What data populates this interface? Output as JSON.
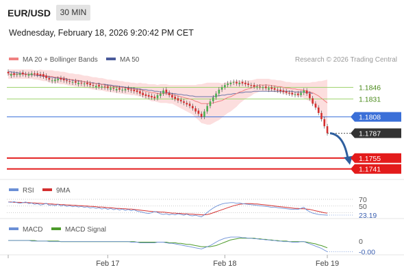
{
  "header": {
    "pair": "EUR/USD",
    "timeframe": "30 MIN",
    "datetime": "Wednesday, February 18, 2026 9:20:42 PM CET"
  },
  "legend": {
    "ma20": "MA 20 + Bollinger Bands",
    "ma50": "MA 50",
    "credit": "Research © 2026 Trading Central",
    "rsi": "RSI",
    "rsi_ma": "9MA",
    "macd": "MACD",
    "macd_signal": "MACD Signal"
  },
  "colors": {
    "candle_up": "#4caf50",
    "candle_down": "#d32f2f",
    "bollinger_fill": "#fbd3d3",
    "ma20": "#f08080",
    "ma50": "#4a5a9a",
    "resistance": "#9fd46f",
    "pivot": "#3a6fd8",
    "support": "#e31b1b",
    "last_price": "#333333",
    "rsi": "#6b8fd6",
    "rsi_ma": "#d32f2f",
    "macd": "#6b8fd6",
    "macd_signal": "#4c9a2a",
    "arrow": "#2f5f9e"
  },
  "chart_data": [
    {
      "type": "candlestick",
      "panel": "price",
      "ylim": [
        1.1731,
        1.1872
      ],
      "x_tick_labels": [
        "Feb 17",
        "Feb 18",
        "Feb 19"
      ],
      "x_tick_index": [
        34,
        74,
        109
      ],
      "n_bars": 110,
      "close": [
        1.1864,
        1.1863,
        1.1862,
        1.1863,
        1.1864,
        1.1863,
        1.1862,
        1.1863,
        1.1864,
        1.1863,
        1.1862,
        1.1861,
        1.186,
        1.1858,
        1.1856,
        1.1855,
        1.1856,
        1.1857,
        1.1856,
        1.1855,
        1.1854,
        1.1853,
        1.1853,
        1.1852,
        1.1852,
        1.1851,
        1.1851,
        1.185,
        1.1849,
        1.1848,
        1.1848,
        1.1847,
        1.1847,
        1.1846,
        1.1845,
        1.1845,
        1.1844,
        1.1844,
        1.1843,
        1.1843,
        1.1844,
        1.1843,
        1.1842,
        1.1841,
        1.184,
        1.1838,
        1.1836,
        1.1835,
        1.1834,
        1.1833,
        1.1832,
        1.1836,
        1.1838,
        1.1842,
        1.1839,
        1.1836,
        1.1833,
        1.1831,
        1.1829,
        1.1828,
        1.1826,
        1.1824,
        1.1822,
        1.1819,
        1.1815,
        1.1812,
        1.1808,
        1.1815,
        1.1822,
        1.1828,
        1.1833,
        1.1838,
        1.1843,
        1.1846,
        1.1849,
        1.1851,
        1.1852,
        1.1853,
        1.1851,
        1.1852,
        1.1851,
        1.185,
        1.1849,
        1.1848,
        1.1847,
        1.1847,
        1.1846,
        1.1846,
        1.1845,
        1.1845,
        1.1844,
        1.1843,
        1.1842,
        1.1841,
        1.184,
        1.1839,
        1.1838,
        1.1837,
        1.1837,
        1.1836,
        1.1839,
        1.1842,
        1.1838,
        1.1832,
        1.1825,
        1.182,
        1.1813,
        1.1805,
        1.1796,
        1.1787
      ],
      "open_offset": [
        0.0002,
        -0.0002,
        0.0002,
        -0.0001,
        -0.0002,
        0.0002,
        0.0001,
        -0.0002,
        -0.0002,
        0.0001,
        0.0002,
        0.0002,
        0.0003,
        0.0003,
        0.0002,
        -0.0001,
        -0.0002,
        -0.0002,
        0.0002,
        0.0002,
        0.0001,
        0.0001,
        -0.0001,
        0.0002,
        -0.0002,
        0.0001,
        -0.0001,
        0.0002,
        0.0002,
        0.0001,
        -0.0002,
        0.0002,
        -0.0001,
        0.0001,
        0.0002,
        -0.0002,
        0.0001,
        -0.0002,
        0.0002,
        -0.0001,
        -0.0002,
        0.0002,
        0.0001,
        0.0002,
        0.0002,
        0.0003,
        0.0003,
        0.0002,
        0.0002,
        0.0002,
        0.0002,
        -0.0004,
        -0.0003,
        -0.0004,
        0.0004,
        0.0003,
        0.0003,
        0.0003,
        0.0003,
        0.0002,
        0.0002,
        0.0002,
        0.0003,
        0.0003,
        0.0004,
        0.0004,
        0.0004,
        -0.0007,
        -0.0007,
        -0.0006,
        -0.0005,
        -0.0005,
        -0.0005,
        -0.0003,
        -0.0003,
        -0.0002,
        -0.0002,
        -0.0001,
        0.0002,
        -0.0002,
        0.0002,
        0.0002,
        0.0002,
        0.0001,
        0.0002,
        -0.0001,
        0.0001,
        -0.0001,
        0.0002,
        -0.0002,
        0.0002,
        0.0002,
        0.0001,
        0.0002,
        0.0002,
        0.0002,
        0.0001,
        0.0002,
        -0.0001,
        0.0002,
        -0.0003,
        -0.0003,
        0.0004,
        0.0006,
        0.0007,
        0.0005,
        0.0007,
        0.0008,
        0.0009,
        0.0009
      ],
      "bars_high_offset": 0.0003,
      "bars_low_offset": 0.0003,
      "levels": [
        {
          "label": "1.1846",
          "value": 1.1846,
          "role": "resistance"
        },
        {
          "label": "1.1831",
          "value": 1.1831,
          "role": "resistance"
        },
        {
          "label": "1.1808",
          "value": 1.1808,
          "role": "pivot"
        },
        {
          "label": "1.1787",
          "value": 1.1787,
          "role": "last"
        },
        {
          "label": "1.1755",
          "value": 1.1755,
          "role": "support"
        },
        {
          "label": "1.1741",
          "value": 1.1741,
          "role": "support"
        }
      ],
      "ma50": [
        1.1866,
        1.1866,
        1.1865,
        1.1865,
        1.1864,
        1.1864,
        1.1863,
        1.1863,
        1.1862,
        1.1862,
        1.1861,
        1.1861,
        1.186,
        1.186,
        1.1859,
        1.1859,
        1.1858,
        1.1858,
        1.1857,
        1.1857,
        1.1856,
        1.1856,
        1.1855,
        1.1855,
        1.1854,
        1.1854,
        1.1853,
        1.1853,
        1.1852,
        1.1852,
        1.1851,
        1.1851,
        1.185,
        1.185,
        1.1849,
        1.1849,
        1.1848,
        1.1848,
        1.1847,
        1.1847,
        1.1846,
        1.1846,
        1.1845,
        1.1845,
        1.1844,
        1.1844,
        1.1843,
        1.1843,
        1.1842,
        1.1842,
        1.1841,
        1.1841,
        1.184,
        1.184,
        1.1839,
        1.1839,
        1.1838,
        1.1838,
        1.1837,
        1.1837,
        1.1836,
        1.1836,
        1.1835,
        1.1835,
        1.1834,
        1.1834,
        1.1834,
        1.1834,
        1.1834,
        1.1834,
        1.1834,
        1.1835,
        1.1835,
        1.1836,
        1.1836,
        1.1837,
        1.1837,
        1.1838,
        1.1838,
        1.1839,
        1.1839,
        1.184,
        1.184,
        1.184,
        1.1841,
        1.1841,
        1.1841,
        1.1841,
        1.1841,
        1.1841,
        1.1841,
        1.1841,
        1.1841,
        1.1841,
        1.1841,
        1.1841,
        1.1841,
        1.1841,
        1.184,
        1.184,
        1.184,
        1.184,
        1.1839,
        1.1839,
        1.1838
      ],
      "ma20": [
        1.1863,
        1.1863,
        1.1863,
        1.1863,
        1.1863,
        1.1863,
        1.1863,
        1.1863,
        1.1863,
        1.1862,
        1.1862,
        1.1862,
        1.1861,
        1.1861,
        1.186,
        1.186,
        1.1859,
        1.1859,
        1.1858,
        1.1858,
        1.1857,
        1.1856,
        1.1856,
        1.1855,
        1.1855,
        1.1854,
        1.1853,
        1.1853,
        1.1852,
        1.1851,
        1.1851,
        1.185,
        1.185,
        1.1849,
        1.1848,
        1.1848,
        1.1847,
        1.1847,
        1.1846,
        1.1846,
        1.1845,
        1.1845,
        1.1844,
        1.1844,
        1.1843,
        1.1843,
        1.1842,
        1.1841,
        1.184,
        1.1839,
        1.1839,
        1.1838,
        1.1838,
        1.1838,
        1.1838,
        1.1837,
        1.1837,
        1.1836,
        1.1835,
        1.1834,
        1.1833,
        1.1832,
        1.1831,
        1.183,
        1.1828,
        1.1827,
        1.1825,
        1.1825,
        1.1825,
        1.1825,
        1.1826,
        1.1827,
        1.1828,
        1.1829,
        1.1831,
        1.1833,
        1.1834,
        1.1836,
        1.1838,
        1.184,
        1.1841,
        1.1843,
        1.1844,
        1.1845,
        1.1847,
        1.1848,
        1.1849,
        1.1849,
        1.1849,
        1.1849,
        1.1848,
        1.1848,
        1.1847,
        1.1847,
        1.1846,
        1.1845,
        1.1845,
        1.1844,
        1.1844,
        1.1843,
        1.1843,
        1.1842,
        1.1841,
        1.184,
        1.1839,
        1.1837,
        1.1835,
        1.1832,
        1.1829,
        1.1826
      ],
      "bb_width": [
        0.0006,
        0.0006,
        0.0006,
        0.0006,
        0.0006,
        0.0006,
        0.0006,
        0.0006,
        0.0006,
        0.0006,
        0.0006,
        0.0007,
        0.0007,
        0.0007,
        0.0008,
        0.0008,
        0.0008,
        0.0008,
        0.0008,
        0.0008,
        0.0008,
        0.0008,
        0.0008,
        0.0008,
        0.0008,
        0.0008,
        0.0008,
        0.0008,
        0.0008,
        0.0008,
        0.0008,
        0.0008,
        0.0008,
        0.0008,
        0.0008,
        0.0008,
        0.0008,
        0.0008,
        0.0008,
        0.0008,
        0.0008,
        0.0008,
        0.0008,
        0.0008,
        0.0008,
        0.0009,
        0.0009,
        0.001,
        0.001,
        0.0011,
        0.0011,
        0.0011,
        0.0012,
        0.0012,
        0.0012,
        0.0012,
        0.0012,
        0.0013,
        0.0014,
        0.0015,
        0.0016,
        0.0017,
        0.0018,
        0.0019,
        0.0021,
        0.0023,
        0.0025,
        0.0026,
        0.0027,
        0.0027,
        0.0026,
        0.0025,
        0.0024,
        0.0022,
        0.0021,
        0.002,
        0.0019,
        0.0018,
        0.0017,
        0.0015,
        0.0013,
        0.0012,
        0.0011,
        0.001,
        0.0009,
        0.0009,
        0.0008,
        0.0008,
        0.0008,
        0.0008,
        0.0008,
        0.0008,
        0.0008,
        0.0008,
        0.0008,
        0.0008,
        0.0008,
        0.0008,
        0.0008,
        0.0009,
        0.0009,
        0.001,
        0.0011,
        0.0012,
        0.0014,
        0.0016,
        0.0019,
        0.0022,
        0.0026,
        0.003
      ]
    },
    {
      "type": "line",
      "panel": "rsi",
      "ylim": [
        15,
        80
      ],
      "y_tick_labels": [
        "70",
        "50"
      ],
      "y_ticks": [
        70,
        50
      ],
      "last_value_label": "23.19",
      "series": [
        {
          "name": "RSI",
          "values": [
            62,
            61,
            63,
            60,
            58,
            60,
            62,
            57,
            59,
            55,
            57,
            53,
            55,
            58,
            52,
            54,
            51,
            55,
            50,
            53,
            49,
            51,
            48,
            50,
            47,
            49,
            46,
            48,
            44,
            46,
            43,
            45,
            41,
            44,
            40,
            43,
            39,
            42,
            38,
            41,
            37,
            40,
            36,
            39,
            35,
            33,
            31,
            29,
            28,
            30,
            34,
            31,
            27,
            25,
            27,
            24,
            26,
            24,
            27,
            25,
            23,
            26,
            22,
            21,
            23,
            20,
            18,
            24,
            31,
            38,
            44,
            49,
            53,
            56,
            58,
            59,
            60,
            60,
            58,
            59,
            57,
            56,
            55,
            54,
            53,
            52,
            51,
            50,
            49,
            48,
            46,
            47,
            45,
            44,
            43,
            42,
            41,
            40,
            41,
            40,
            43,
            46,
            38,
            33,
            29,
            27,
            25,
            24,
            23.5,
            23.19
          ]
        },
        {
          "name": "9MA",
          "values": [
            62,
            62,
            61,
            61,
            61,
            60,
            60,
            60,
            59,
            59,
            58,
            58,
            57,
            57,
            56,
            56,
            55,
            55,
            54,
            54,
            53,
            53,
            52,
            52,
            51,
            51,
            50,
            50,
            49,
            49,
            48,
            47,
            47,
            46,
            45,
            45,
            44,
            43,
            43,
            42,
            42,
            41,
            41,
            40,
            39,
            38,
            37,
            36,
            35,
            34,
            33,
            33,
            32,
            32,
            31,
            30,
            29,
            29,
            28,
            28,
            27,
            27,
            26,
            26,
            25,
            25,
            24,
            24,
            25,
            27,
            30,
            33,
            36,
            39,
            42,
            45,
            48,
            51,
            53,
            55,
            56,
            57,
            57,
            57,
            56,
            56,
            55,
            54,
            53,
            52,
            51,
            50,
            49,
            48,
            47,
            46,
            45,
            44,
            43,
            43,
            42,
            42,
            41,
            40,
            38,
            36,
            34,
            32,
            30,
            29
          ]
        }
      ]
    },
    {
      "type": "line",
      "panel": "macd",
      "ylim": [
        -0.0022,
        0.0012
      ],
      "y_tick_labels": [
        "0"
      ],
      "y_ticks": [
        0
      ],
      "last_value_label": "-0.00",
      "series": [
        {
          "name": "MACD",
          "values": [
            0.0001,
            0.0001,
            0.0001,
            0.0001,
            0.0001,
            0.0001,
            0.0001,
            0.0001,
            0,
            0,
            0,
            0,
            0,
            0,
            -0.0001,
            -0.0001,
            -0.0001,
            -0.0001,
            -0.0001,
            -0.0001,
            -0.0001,
            -0.0001,
            -0.0001,
            -0.0001,
            -0.0001,
            -0.0001,
            -0.0001,
            -0.0001,
            -0.0001,
            -0.0001,
            -0.0001,
            -0.0001,
            -0.0001,
            -0.0001,
            -0.0001,
            -0.0001,
            -0.0001,
            -0.0001,
            -0.0001,
            -0.0001,
            -0.0001,
            -0.0001,
            -0.0002,
            -0.0002,
            -0.0002,
            -0.0003,
            -0.0003,
            -0.0003,
            -0.0003,
            -0.0003,
            -0.0003,
            -0.0002,
            -0.0002,
            -0.0002,
            -0.0003,
            -0.0004,
            -0.0004,
            -0.0005,
            -0.0006,
            -0.0007,
            -0.0008,
            -0.0009,
            -0.001,
            -0.0011,
            -0.0012,
            -0.0013,
            -0.0014,
            -0.0012,
            -0.001,
            -0.0008,
            -0.0005,
            -0.0002,
            0.0001,
            0.0003,
            0.0005,
            0.0006,
            0.0007,
            0.0007,
            0.0007,
            0.0007,
            0.0006,
            0.0006,
            0.0005,
            0.0005,
            0.0004,
            0.0004,
            0.0003,
            0.0003,
            0.0002,
            0.0002,
            0.0001,
            0.0001,
            0,
            0,
            -0.0001,
            -0.0001,
            -0.0001,
            -0.0002,
            -0.0002,
            -0.0002,
            -0.0001,
            -0.0001,
            -0.0003,
            -0.0005,
            -0.0007,
            -0.0009,
            -0.0011,
            -0.0013,
            -0.0016,
            -0.0019
          ]
        },
        {
          "name": "MACD Signal",
          "values": [
            0.0001,
            0.0001,
            0.0001,
            0.0001,
            0.0001,
            0.0001,
            0.0001,
            0.0001,
            0.0001,
            0.0001,
            0,
            0,
            0,
            0,
            0,
            0,
            0,
            0,
            -0.0001,
            -0.0001,
            -0.0001,
            -0.0001,
            -0.0001,
            -0.0001,
            -0.0001,
            -0.0001,
            -0.0001,
            -0.0001,
            -0.0001,
            -0.0001,
            -0.0001,
            -0.0001,
            -0.0001,
            -0.0001,
            -0.0001,
            -0.0001,
            -0.0001,
            -0.0001,
            -0.0001,
            -0.0001,
            -0.0001,
            -0.0001,
            -0.0001,
            -0.0001,
            -0.0002,
            -0.0002,
            -0.0002,
            -0.0002,
            -0.0002,
            -0.0002,
            -0.0002,
            -0.0002,
            -0.0002,
            -0.0002,
            -0.0002,
            -0.0003,
            -0.0003,
            -0.0003,
            -0.0004,
            -0.0004,
            -0.0005,
            -0.0006,
            -0.0006,
            -0.0007,
            -0.0008,
            -0.0009,
            -0.001,
            -0.001,
            -0.001,
            -0.001,
            -0.0009,
            -0.0008,
            -0.0006,
            -0.0004,
            -0.0002,
            0,
            0.0002,
            0.0003,
            0.0004,
            0.0005,
            0.0005,
            0.0005,
            0.0005,
            0.0005,
            0.0005,
            0.0004,
            0.0004,
            0.0003,
            0.0003,
            0.0002,
            0.0002,
            0.0001,
            0.0001,
            0,
            0,
            0,
            -0.0001,
            -0.0001,
            -0.0001,
            -0.0001,
            -0.0001,
            -0.0001,
            -0.0002,
            -0.0003,
            -0.0004,
            -0.0005,
            -0.0007,
            -0.0008,
            -0.001,
            -0.0012
          ]
        }
      ]
    }
  ]
}
